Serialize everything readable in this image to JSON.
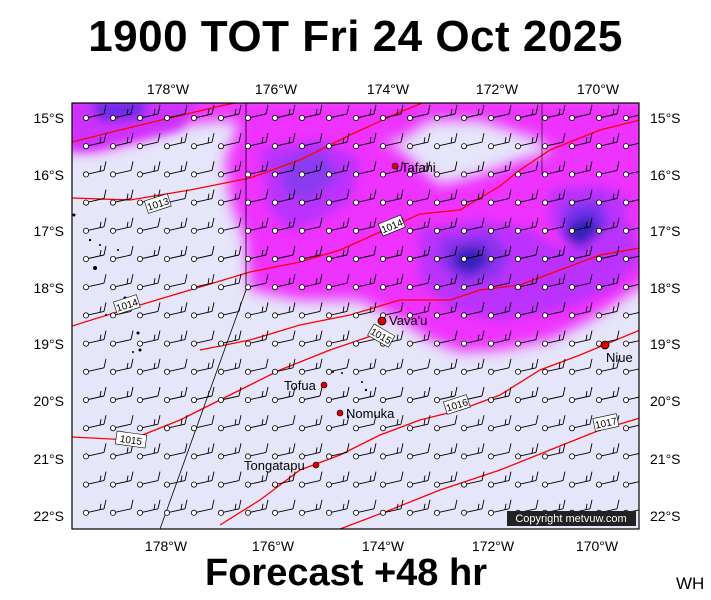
{
  "title": "1900 TOT Fri 24 Oct 2025",
  "footer": "Forecast +48 hr",
  "corner_label": "WH",
  "copyright": "Copyright metvuw.com",
  "map": {
    "lon_ticks_top": [
      "178°W",
      "176°W",
      "174°W",
      "172°W",
      "170°W"
    ],
    "lon_ticks_bottom": [
      "178°W",
      "176°W",
      "174°W",
      "172°W",
      "170°W"
    ],
    "lat_ticks_left": [
      "15°S",
      "16°S",
      "17°S",
      "18°S",
      "19°S",
      "20°S",
      "21°S",
      "22°S"
    ],
    "lat_ticks_right": [
      "15°S",
      "16°S",
      "17°S",
      "18°S",
      "19°S",
      "20°S",
      "21°S",
      "22°S"
    ],
    "places": [
      {
        "name": "Tafahi"
      },
      {
        "name": "Vava'u"
      },
      {
        "name": "Niue"
      },
      {
        "name": "Tofua"
      },
      {
        "name": "Nomuka"
      },
      {
        "name": "Tongatapu"
      }
    ],
    "isobar_labels": [
      "1013",
      "1014",
      "1014",
      "1015",
      "1016",
      "1017",
      "1015"
    ],
    "colors": {
      "background": "#e6e6fa",
      "rain_light": "#ff00ff",
      "rain_medium": "#cc44ff",
      "rain_heavy": "#6622dd",
      "rain_very_heavy": "#2a1aa0",
      "isobar": "#ff0000",
      "place_marker": "#dd0000"
    }
  }
}
